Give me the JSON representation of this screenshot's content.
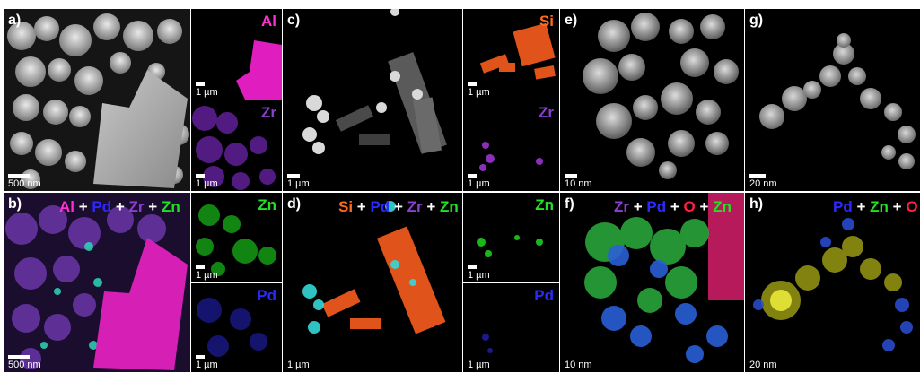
{
  "panels": {
    "a": {
      "label": "a)",
      "scale": "500 nm"
    },
    "al_map": {
      "element": "Al",
      "scale": "1 µm"
    },
    "zr_map": {
      "element": "Zr",
      "scale": "1 µm"
    },
    "b": {
      "label": "b)",
      "scale": "500 nm",
      "legend": [
        "Al",
        "+",
        "Pd",
        "+",
        "Zr",
        "+",
        "Zn"
      ]
    },
    "zn_map": {
      "element": "Zn",
      "scale": "1 µm"
    },
    "pd_map": {
      "element": "Pd",
      "scale": "1 µm"
    },
    "c": {
      "label": "c)",
      "scale": "1 µm"
    },
    "si_map_c": {
      "element": "Si",
      "scale": "1 µm"
    },
    "zr_map_c": {
      "element": "Zr",
      "scale": "1 µm"
    },
    "d": {
      "label": "d)",
      "scale": "1 µm",
      "legend": [
        "Si",
        "+",
        "Pd",
        "+",
        "Zr",
        "+",
        "Zn"
      ]
    },
    "zn_map_d": {
      "element": "Zn",
      "scale": "1 µm"
    },
    "pd_map_d": {
      "element": "Pd",
      "scale": "1 µm"
    },
    "e": {
      "label": "e)",
      "scale": "10 nm"
    },
    "f": {
      "label": "f)",
      "scale": "10 nm",
      "legend": [
        "Zr",
        "+",
        "Pd",
        "+",
        "O",
        "+",
        "Zn"
      ]
    },
    "g": {
      "label": "g)",
      "scale": "20 nm"
    },
    "h": {
      "label": "h)",
      "scale": "20 nm",
      "legend": [
        "Pd",
        "+",
        "Zn",
        "+",
        "O"
      ]
    }
  },
  "colors": {
    "Al": "#ff2fd0",
    "Zr": "#8a3fd0",
    "Zn": "#22e022",
    "Pd": "#2a2aff",
    "Si": "#ff6a1a",
    "O": "#ff2040"
  }
}
